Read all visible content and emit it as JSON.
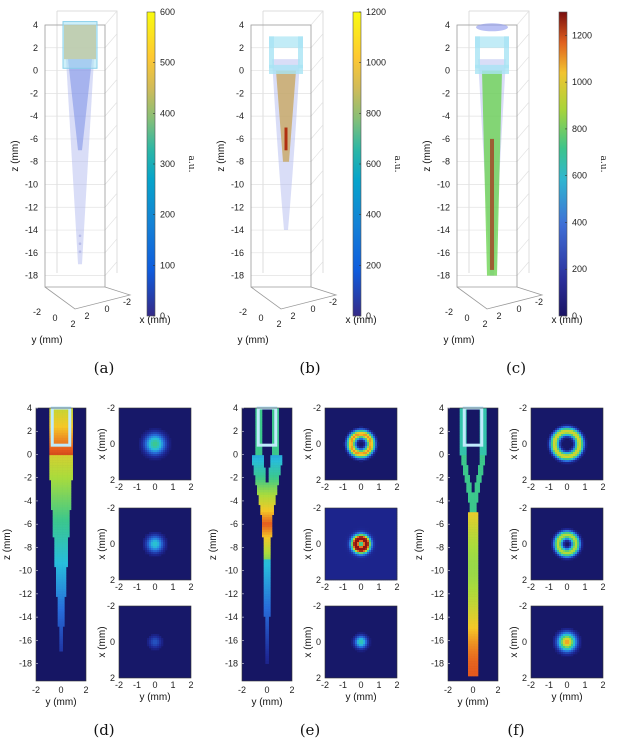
{
  "figure": {
    "panel_labels": [
      "(a)",
      "(b)",
      "(c)",
      "(d)",
      "(e)",
      "(f)"
    ]
  },
  "chart_data": [
    {
      "id": "a",
      "type": "heatmap",
      "title": "(a)",
      "description3d": "3D isosurface rendering of signal inside tapered fiber",
      "zlabel": "z (mm)",
      "xlabel": "x (mm)",
      "ylabel": "y (mm)",
      "zticks": [
        4,
        2,
        0,
        -2,
        -4,
        -6,
        -8,
        -10,
        -12,
        -14,
        -16,
        -18
      ],
      "xticks": [
        -2,
        0,
        2
      ],
      "yticks": [
        -2,
        0,
        2
      ],
      "zlim": [
        -19,
        4
      ],
      "colorbar": {
        "min": 0,
        "max": 600,
        "ticks": [
          0,
          100,
          200,
          300,
          400,
          500,
          600
        ],
        "label": "a.u."
      },
      "signal_extent_z": [
        -17,
        4
      ]
    },
    {
      "id": "b",
      "type": "heatmap",
      "title": "(b)",
      "zlabel": "z (mm)",
      "xlabel": "x (mm)",
      "ylabel": "y (mm)",
      "zticks": [
        4,
        2,
        0,
        -2,
        -4,
        -6,
        -8,
        -10,
        -12,
        -14,
        -16,
        -18
      ],
      "xticks": [
        -2,
        0,
        2
      ],
      "yticks": [
        -2,
        0,
        2
      ],
      "zlim": [
        -19,
        4
      ],
      "colorbar": {
        "min": 0,
        "max": 1200,
        "ticks": [
          0,
          200,
          400,
          600,
          800,
          1000,
          1200
        ],
        "label": "a.u."
      },
      "signal_extent_z": [
        -14,
        1
      ]
    },
    {
      "id": "c",
      "type": "heatmap",
      "title": "(c)",
      "zlabel": "z (mm)",
      "xlabel": "x (mm)",
      "ylabel": "y (mm)",
      "zticks": [
        4,
        2,
        0,
        -2,
        -4,
        -6,
        -8,
        -10,
        -12,
        -14,
        -16,
        -18
      ],
      "xticks": [
        -2,
        0,
        2
      ],
      "yticks": [
        -2,
        0,
        2
      ],
      "zlim": [
        -19,
        4
      ],
      "colorbar": {
        "min": 0,
        "max": 1300,
        "ticks": [
          0,
          200,
          400,
          600,
          800,
          1000,
          1200
        ],
        "label": "a.u."
      },
      "signal_extent_z": [
        -18,
        0
      ]
    },
    {
      "id": "d",
      "type": "heatmap",
      "title": "(d)",
      "longitudinal": {
        "xlabel": "y (mm)",
        "ylabel": "z (mm)",
        "xticks": [
          -2,
          0,
          2
        ],
        "yticks": [
          4,
          2,
          0,
          -2,
          -4,
          -6,
          -8,
          -10,
          -12,
          -14,
          -16,
          -18
        ],
        "ylim": [
          -19.5,
          4
        ],
        "xlim": [
          -2,
          2
        ],
        "profile": "cone",
        "peak_z": 0.5,
        "tip_z": -17
      },
      "cross_sections": {
        "xlabel": "y (mm)",
        "ylabel": "x (mm)",
        "xticks": [
          -2,
          -1,
          0,
          1,
          2
        ],
        "yticks": [
          -2,
          0,
          2
        ],
        "slices": [
          {
            "shape": "disk",
            "radius_mm": 0.65,
            "peak": 0.55
          },
          {
            "shape": "disk",
            "radius_mm": 0.55,
            "peak": 0.45
          },
          {
            "shape": "disk",
            "radius_mm": 0.45,
            "peak": 0.22
          }
        ]
      }
    },
    {
      "id": "e",
      "type": "heatmap",
      "title": "(e)",
      "longitudinal": {
        "xlabel": "y (mm)",
        "ylabel": "z (mm)",
        "xticks": [
          -2,
          0,
          2
        ],
        "yticks": [
          4,
          2,
          0,
          -2,
          -4,
          -6,
          -8,
          -10,
          -12,
          -14,
          -16,
          -18
        ],
        "ylim": [
          -19.5,
          4
        ],
        "xlim": [
          -2,
          2
        ],
        "profile": "hollow-converging",
        "peak_z": -6,
        "tip_z": -18
      },
      "cross_sections": {
        "xlabel": "y (mm)",
        "ylabel": "x (mm)",
        "xticks": [
          -2,
          -1,
          0,
          1,
          2
        ],
        "yticks": [
          -2,
          0,
          2
        ],
        "slices": [
          {
            "shape": "ring",
            "radius_mm": 0.55,
            "peak": 0.85
          },
          {
            "shape": "ring",
            "radius_mm": 0.3,
            "peak": 1.0
          },
          {
            "shape": "disk",
            "radius_mm": 0.4,
            "peak": 0.5
          }
        ]
      }
    },
    {
      "id": "f",
      "type": "heatmap",
      "title": "(f)",
      "longitudinal": {
        "xlabel": "y (mm)",
        "ylabel": "z (mm)",
        "xticks": [
          -2,
          0,
          2
        ],
        "yticks": [
          4,
          2,
          0,
          -2,
          -4,
          -6,
          -8,
          -10,
          -12,
          -14,
          -16,
          -18
        ],
        "ylim": [
          -19.5,
          4
        ],
        "xlim": [
          -2,
          2
        ],
        "profile": "hollow-then-filled",
        "peak_z": -10,
        "tip_z": -19
      },
      "cross_sections": {
        "xlabel": "y (mm)",
        "ylabel": "x (mm)",
        "xticks": [
          -2,
          -1,
          0,
          1,
          2
        ],
        "yticks": [
          -2,
          0,
          2
        ],
        "slices": [
          {
            "shape": "ring",
            "radius_mm": 0.7,
            "peak": 0.75
          },
          {
            "shape": "ring",
            "radius_mm": 0.5,
            "peak": 0.7
          },
          {
            "shape": "disk",
            "radius_mm": 0.55,
            "peak": 0.85
          }
        ]
      }
    }
  ]
}
